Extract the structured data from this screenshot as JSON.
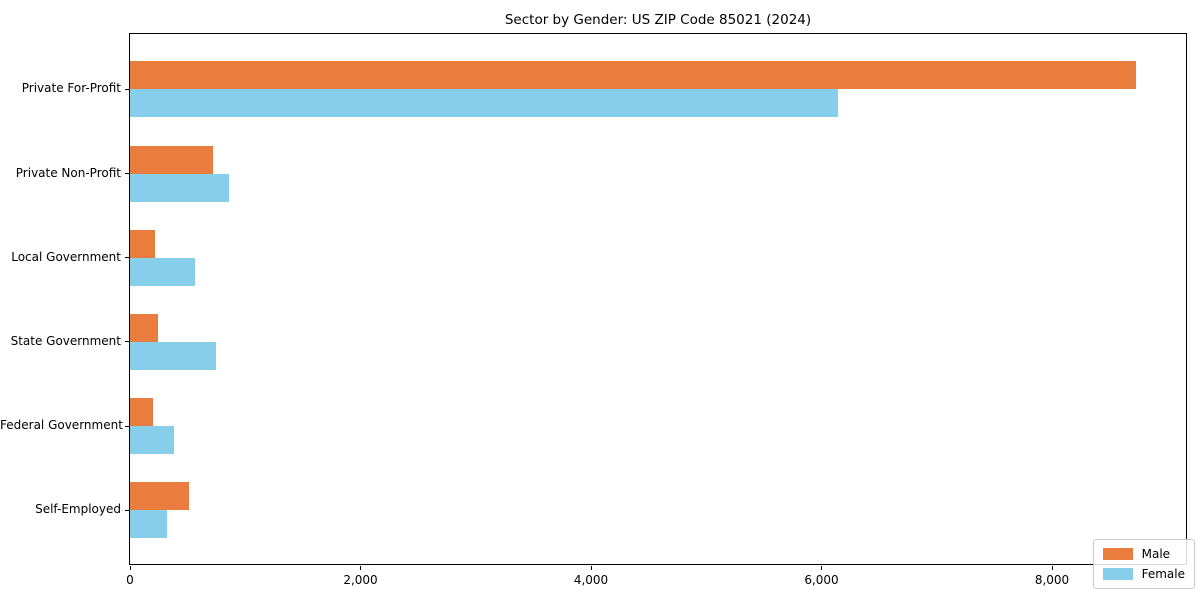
{
  "chart_data": {
    "type": "bar",
    "orientation": "horizontal",
    "title": "Sector by Gender: US ZIP Code 85021 (2024)",
    "categories": [
      "Private For-Profit",
      "Private Non-Profit",
      "Local Government",
      "State Government",
      "Federal Government",
      "Self-Employed"
    ],
    "series": [
      {
        "name": "Male",
        "color": "#e87d3d",
        "values": [
          8730,
          720,
          215,
          245,
          200,
          510
        ]
      },
      {
        "name": "Female",
        "color": "#87ceeb",
        "values": [
          6140,
          860,
          560,
          745,
          380,
          320
        ]
      }
    ],
    "xlabel": "",
    "ylabel": "",
    "xlim": [
      0,
      9180
    ],
    "xticks": [
      0,
      2000,
      4000,
      6000,
      8000
    ],
    "xtick_labels": [
      "0",
      "2,000",
      "4,000",
      "6,000",
      "8,000"
    ],
    "grid": false,
    "legend": {
      "position": "lower right",
      "entries": [
        "Male",
        "Female"
      ]
    }
  }
}
